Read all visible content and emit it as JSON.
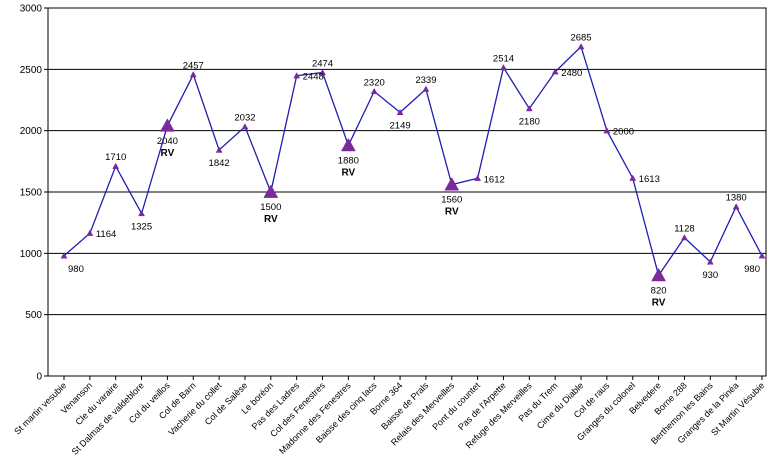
{
  "chart_data": {
    "type": "line",
    "ylim": [
      0,
      3000
    ],
    "yticks": [
      0,
      500,
      1000,
      1500,
      2000,
      2500,
      3000
    ],
    "grid": "horizontal",
    "line_color": "#1f1fb0",
    "marker_color": "#7a2a9a",
    "categories": [
      "St martin vesubie",
      "Venanson",
      "Cle du varaire",
      "St Dalmas de valdeblore",
      "Col du veillos",
      "Col de Barn",
      "Vacherie du collet",
      "Col de Salèse",
      "Le boréon",
      "Pas des Ladres",
      "Col des Fenestres",
      "Madonne des Fenestres",
      "Baisse des cinq lacs",
      "Borne 364",
      "Baisse de Prals",
      "Relais des Merveilles",
      "Pont du countet",
      "Pas de l'Arpette",
      "Refuge des Merveilles",
      "Pas du Trem",
      "Cime du Diable",
      "Col de raus",
      "Granges du colonel",
      "Belvedere",
      "Borne 288",
      "Berthemon les Bains",
      "Granges de la Pinéa",
      "St Martin Vésubie"
    ],
    "series": [
      {
        "values": [
          980,
          1164,
          1710,
          1325,
          2040,
          2457,
          1842,
          2032,
          1500,
          2448,
          2474,
          1880,
          2320,
          2149,
          2339,
          1560,
          1612,
          2514,
          2180,
          2480,
          2685,
          2000,
          1613,
          820,
          1128,
          930,
          1380,
          980
        ]
      }
    ],
    "data_labels": [
      "980",
      "1164",
      "1710",
      "1325",
      "2040",
      "2457",
      "1842",
      "2032",
      "1500",
      "2448",
      "2474",
      "1880",
      "2320",
      "2149",
      "2339",
      "1560",
      "1612",
      "2514",
      "2180",
      "2480",
      "2685",
      "2000",
      "1613",
      "820",
      "1128",
      "930",
      "1380",
      "980"
    ],
    "rv_points": [
      4,
      8,
      11,
      15,
      23
    ],
    "rv_label": "RV"
  }
}
